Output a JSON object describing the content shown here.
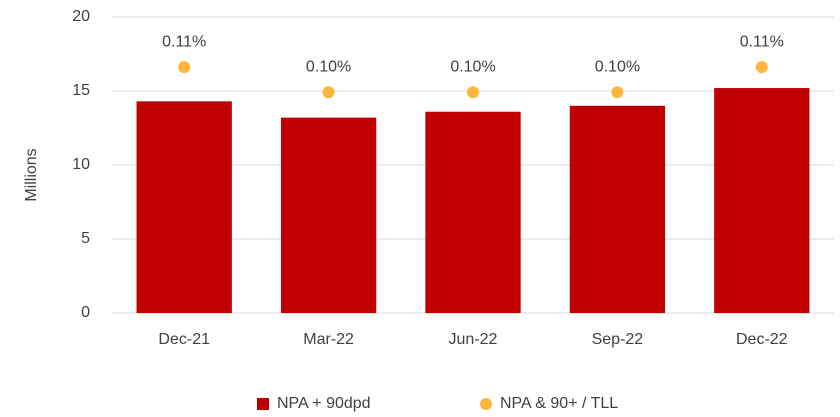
{
  "chart_data": {
    "type": "bar",
    "categories": [
      "Dec-21",
      "Mar-22",
      "Jun-22",
      "Sep-22",
      "Dec-22"
    ],
    "y_label": "Millions",
    "ylim": [
      0,
      20
    ],
    "yticks": [
      0,
      5,
      10,
      15,
      20
    ],
    "y2lim": [
      0.012,
      0.13
    ],
    "grid": true,
    "legend": "bottom",
    "series": [
      {
        "name": "NPA + 90dpd",
        "type": "bar",
        "color": "#c00000",
        "values": [
          14.3,
          13.2,
          13.6,
          14.0,
          15.2
        ]
      },
      {
        "name": "NPA & 90+ / TLL",
        "type": "scatter",
        "axis": "y2",
        "color": "#ffb43c",
        "values": [
          0.11,
          0.1,
          0.1,
          0.1,
          0.11
        ],
        "value_labels": [
          "0.11%",
          "0.10%",
          "0.10%",
          "0.10%",
          "0.11%"
        ]
      }
    ]
  }
}
